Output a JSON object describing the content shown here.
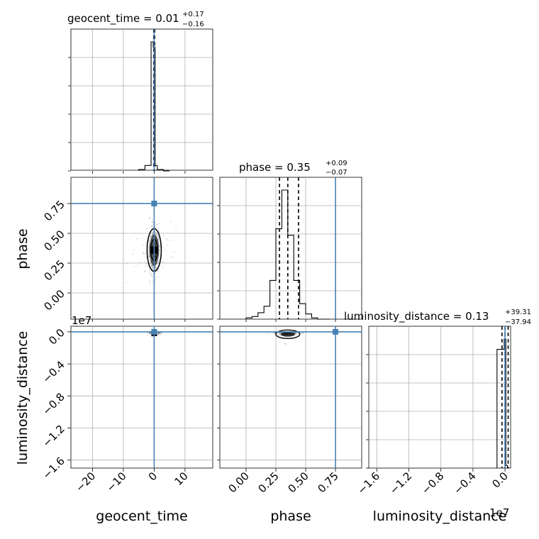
{
  "chart_data": {
    "type": "corner",
    "parameters": [
      {
        "name": "geocent_time",
        "median": "0.01",
        "plus": "+0.17",
        "minus": "−0.16",
        "ticks": [
          "−20",
          "−10",
          "0",
          "10"
        ]
      },
      {
        "name": "phase",
        "median": "0.35",
        "plus": "+0.09",
        "minus": "−0.07",
        "ticks": [
          "0.00",
          "0.25",
          "0.50",
          "0.75"
        ]
      },
      {
        "name": "luminosity_distance",
        "median": "0.13",
        "plus": "+39.31",
        "minus": "−37.94",
        "ticks": [
          "−1.6",
          "−1.2",
          "−0.8",
          "−0.4",
          "0.0"
        ],
        "offset": "1e7"
      }
    ],
    "ranges": {
      "geocent_time": [
        -27,
        19
      ],
      "phase": [
        -0.22,
        0.97
      ],
      "luminosity_distance": [
        -17000000,
        700000
      ]
    },
    "truths": {
      "geocent_time": 0.0,
      "phase": 0.75,
      "luminosity_distance": 0.0
    },
    "quantiles": {
      "geocent_time": [
        -0.15,
        0.01,
        0.18
      ],
      "phase": [
        0.28,
        0.35,
        0.44
      ],
      "luminosity_distance": [
        -380000,
        1300,
        390000
      ]
    },
    "hist_geocent_time": {
      "edges": [
        -5,
        -3,
        -1,
        -0.3,
        0.3,
        1,
        3,
        5
      ],
      "counts": [
        0.01,
        0.04,
        0.95,
        0.91,
        0.04,
        0.01,
        0
      ]
    },
    "hist_phase": {
      "edges": [
        0.0,
        0.05,
        0.1,
        0.15,
        0.2,
        0.25,
        0.3,
        0.35,
        0.4,
        0.45,
        0.5,
        0.55,
        0.6,
        0.65,
        0.7
      ],
      "counts": [
        0.01,
        0.02,
        0.05,
        0.1,
        0.3,
        0.7,
        1.0,
        0.65,
        0.3,
        0.12,
        0.04,
        0.01,
        0.0,
        0.0
      ]
    },
    "hist_luminosity_distance": {
      "edges": [
        -1000000,
        -100000,
        100000,
        300000
      ],
      "counts": [
        0.92,
        1.0,
        0.02
      ]
    },
    "grid": true,
    "truth_color": "#4682b4"
  }
}
